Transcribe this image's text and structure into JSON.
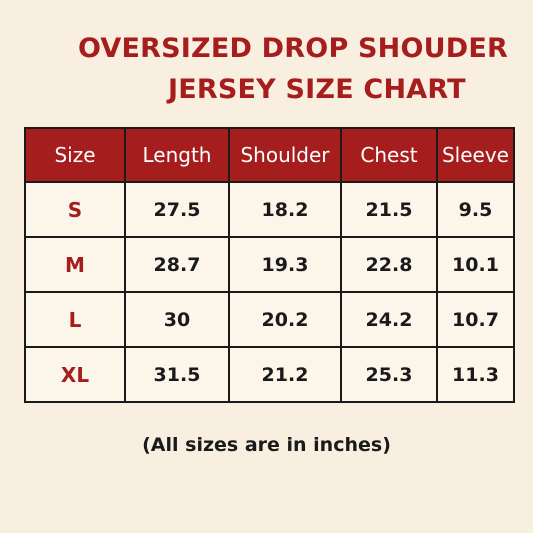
{
  "title": {
    "line1": "OVERSIZED DROP SHOUDER",
    "line2": "JERSEY SIZE CHART"
  },
  "table": {
    "headers": [
      "Size",
      "Length",
      "Shoulder",
      "Chest",
      "Sleeve"
    ],
    "rows": [
      [
        "S",
        "27.5",
        "18.2",
        "21.5",
        "9.5"
      ],
      [
        "M",
        "28.7",
        "19.3",
        "22.8",
        "10.1"
      ],
      [
        "L",
        "30",
        "20.2",
        "24.2",
        "10.7"
      ],
      [
        "XL",
        "31.5",
        "21.2",
        "25.3",
        "11.3"
      ]
    ]
  },
  "footnote": "(All sizes are in inches)",
  "colors": {
    "accent": "#a51d1d",
    "background": "#f8efe0",
    "cell_background": "#fbf5ea",
    "border": "#1a1a1a",
    "header_text": "#ffffff"
  }
}
